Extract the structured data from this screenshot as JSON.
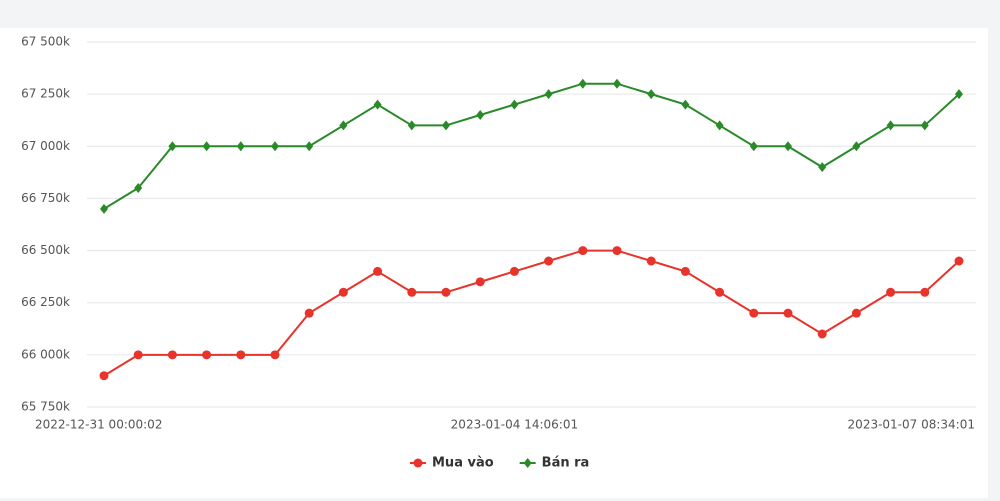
{
  "chart_data": {
    "type": "line",
    "categories": [
      "2022-12-31 00:00:02",
      null,
      null,
      null,
      null,
      null,
      null,
      null,
      null,
      null,
      null,
      null,
      "2023-01-04 14:06:01",
      null,
      null,
      null,
      null,
      null,
      null,
      null,
      null,
      null,
      null,
      null,
      null,
      "2023-01-07 08:34:01"
    ],
    "series": [
      {
        "name": "Mua vào",
        "color": "#e8332a",
        "values": [
          65900,
          66000,
          66000,
          66000,
          66000,
          66000,
          66200,
          66300,
          66400,
          66300,
          66300,
          66350,
          66400,
          66450,
          66500,
          66500,
          66450,
          66400,
          66300,
          66200,
          66200,
          66100,
          66200,
          66300,
          66300,
          66450
        ]
      },
      {
        "name": "Bán ra",
        "color": "#2a8a2a",
        "values": [
          66700,
          66800,
          67000,
          67000,
          67000,
          67000,
          67000,
          67100,
          67200,
          67100,
          67100,
          67150,
          67200,
          67250,
          67300,
          67300,
          67250,
          67200,
          67100,
          67000,
          67000,
          66900,
          67000,
          67100,
          67100,
          67250
        ]
      }
    ],
    "ylim": [
      65750,
      67500
    ],
    "yticks": [
      {
        "value": 65750,
        "label": "65 750k"
      },
      {
        "value": 66000,
        "label": "66 000k"
      },
      {
        "value": 66250,
        "label": "66 250k"
      },
      {
        "value": 66500,
        "label": "66 500k"
      },
      {
        "value": 66750,
        "label": "66 750k"
      },
      {
        "value": 67000,
        "label": "67 000k"
      },
      {
        "value": 67250,
        "label": "67 250k"
      },
      {
        "value": 67500,
        "label": "67 500k"
      }
    ],
    "grid": true,
    "legend": "bottom"
  }
}
